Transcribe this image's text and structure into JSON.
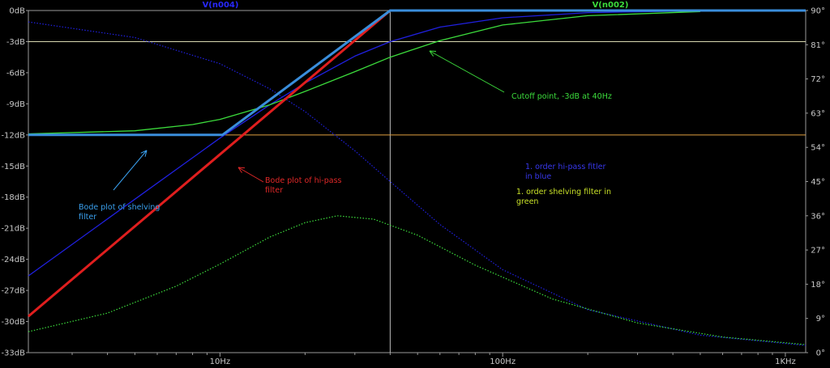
{
  "chart_data": {
    "type": "line",
    "x_scale": "log",
    "x_unit": "Hz",
    "xlim": [
      2.1,
      1180
    ],
    "ylim_left": [
      -33,
      0
    ],
    "ylim_right": [
      0,
      90
    ],
    "x_ticks": [
      {
        "value": 10,
        "label": "10Hz"
      },
      {
        "value": 100,
        "label": "100Hz"
      },
      {
        "value": 1000,
        "label": "1KHz"
      }
    ],
    "y_ticks_left": [
      "0dB",
      "-3dB",
      "-6dB",
      "-9dB",
      "-12dB",
      "-15dB",
      "-18dB",
      "-21dB",
      "-24dB",
      "-27dB",
      "-30dB",
      "-33dB"
    ],
    "y_ticks_right": [
      "90°",
      "81°",
      "72°",
      "63°",
      "54°",
      "45°",
      "36°",
      "27°",
      "18°",
      "9°",
      "0°"
    ],
    "trace_labels": [
      {
        "text": "V(n004)",
        "color": "#2828ff"
      },
      {
        "text": "V(n002)",
        "color": "#3cdc3c"
      }
    ],
    "cursor_lines": {
      "vertical_hz": 40,
      "horizontal_db": [
        -3,
        -12
      ]
    },
    "series": [
      {
        "id": "hipass_magnitude",
        "color": "#2020e0",
        "style": "solid",
        "x": [
          2.1,
          5,
          10,
          15,
          20,
          30,
          40,
          60,
          100,
          200,
          500,
          1180
        ],
        "y": [
          -25.6,
          -18.2,
          -12.3,
          -9.1,
          -7.0,
          -4.4,
          -3.0,
          -1.6,
          -0.7,
          -0.2,
          -0.03,
          0
        ]
      },
      {
        "id": "hipass_phase",
        "color": "#2020e0",
        "style": "dotted",
        "axis": "right",
        "x": [
          2.1,
          5,
          10,
          15,
          20,
          30,
          40,
          60,
          100,
          200,
          500,
          1180
        ],
        "y": [
          87,
          82.9,
          76.0,
          69.4,
          63.4,
          53.1,
          45.0,
          33.7,
          21.8,
          11.3,
          4.6,
          1.9
        ]
      },
      {
        "id": "shelving_magnitude",
        "color": "#3cdc3c",
        "style": "solid",
        "x": [
          2.1,
          5,
          8,
          10,
          15,
          20,
          30,
          40,
          60,
          100,
          200,
          500
        ],
        "y": [
          -11.9,
          -11.6,
          -11.0,
          -10.5,
          -9.1,
          -7.8,
          -5.9,
          -4.5,
          -2.9,
          -1.4,
          -0.5,
          -0.1
        ]
      },
      {
        "id": "shelving_phase",
        "color": "#3cdc3c",
        "style": "dotted",
        "axis": "right",
        "x": [
          2.1,
          4,
          7,
          10,
          15,
          20,
          26,
          35,
          50,
          80,
          150,
          300,
          600,
          1180
        ],
        "y": [
          5.5,
          10.4,
          17.5,
          23.3,
          30.4,
          34.2,
          36.0,
          35.1,
          30.9,
          23.0,
          14.1,
          7.8,
          4.1,
          2.1
        ]
      },
      {
        "id": "bode_hipass_asymptote",
        "color": "#e01e1e",
        "style": "solid",
        "width": 3,
        "x": [
          2.1,
          40,
          1180
        ],
        "y": [
          -29.5,
          0,
          0
        ]
      },
      {
        "id": "bode_shelving_asymptote",
        "color": "#3a8edc",
        "style": "solid",
        "width": 3,
        "x": [
          2.1,
          10.2,
          40,
          1180
        ],
        "y": [
          -12,
          -12,
          0,
          0
        ]
      }
    ],
    "annotations": [
      {
        "id": "shelving-bode-note",
        "lines": [
          "Bode plot of shelving",
          "filter"
        ],
        "color": "#3aa0ee"
      },
      {
        "id": "hipass-bode-note",
        "lines": [
          "Bode plot of hi-pass",
          "filter"
        ],
        "color": "#e02828"
      },
      {
        "id": "cutoff-note",
        "lines": [
          "Cutoff point, -3dB at 40Hz"
        ],
        "color": "#3cdc3c"
      },
      {
        "id": "blue-legend-note",
        "lines": [
          "1. order hi-pass fitler",
          "in blue"
        ],
        "color": "#3838ee"
      },
      {
        "id": "green-legend-note",
        "lines": [
          "1. order shelving filter in",
          "green"
        ],
        "color": "#c8e028"
      }
    ]
  }
}
